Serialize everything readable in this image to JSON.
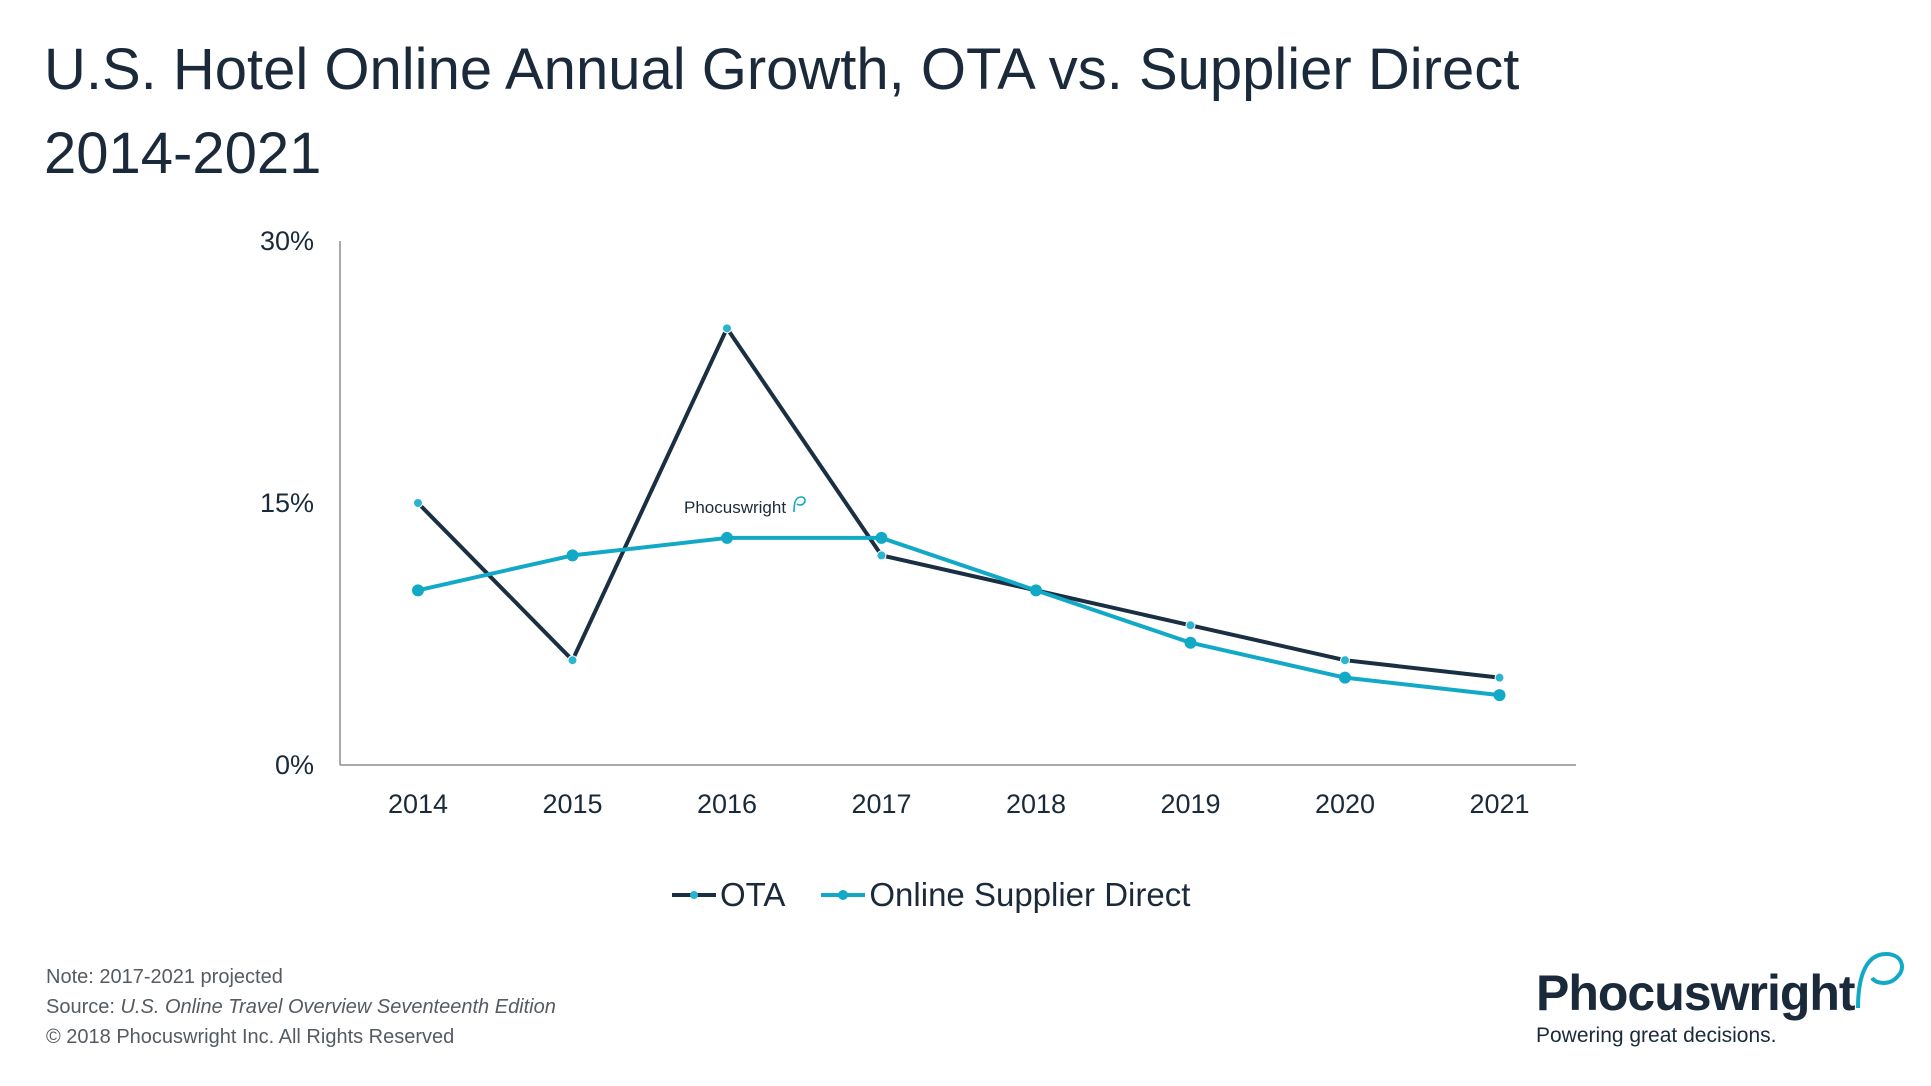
{
  "title_line1": "U.S. Hotel Online Annual Growth, OTA vs. Supplier Direct",
  "title_line2": "2014-2021",
  "chart_data": {
    "type": "line",
    "title": "U.S. Hotel Online Annual Growth, OTA vs. Supplier Direct 2014-2021",
    "categories": [
      "2014",
      "2015",
      "2016",
      "2017",
      "2018",
      "2019",
      "2020",
      "2021"
    ],
    "y_ticks": [
      0,
      15,
      30
    ],
    "y_tick_labels": [
      "0%",
      "15%",
      "30%"
    ],
    "ylim": [
      0,
      30
    ],
    "series": [
      {
        "name": "OTA",
        "color": "#1b2f42",
        "values": [
          15,
          6,
          25,
          12,
          10,
          8,
          6,
          5
        ]
      },
      {
        "name": "Online Supplier Direct",
        "color": "#11a9c5",
        "values": [
          10,
          12,
          13,
          13,
          10,
          7,
          5,
          4
        ]
      }
    ],
    "marker_color": "#2bb4cf",
    "grid": false,
    "legend_position": "bottom-center"
  },
  "legend": {
    "ota": "OTA",
    "supplier": "Online Supplier Direct"
  },
  "watermark": "Phocuswright",
  "notes": {
    "note": "Note: 2017-2021 projected",
    "source_prefix": "Source: ",
    "source_title": "U.S. Online Travel Overview Seventeenth Edition",
    "copyright": "© 2018 Phocuswright Inc. All Rights Reserved"
  },
  "brand": {
    "name": "Phocuswright",
    "tagline": "Powering great decisions."
  },
  "colors": {
    "navy": "#1b2f42",
    "teal": "#11a9c5",
    "text": "#1b2a3a"
  }
}
